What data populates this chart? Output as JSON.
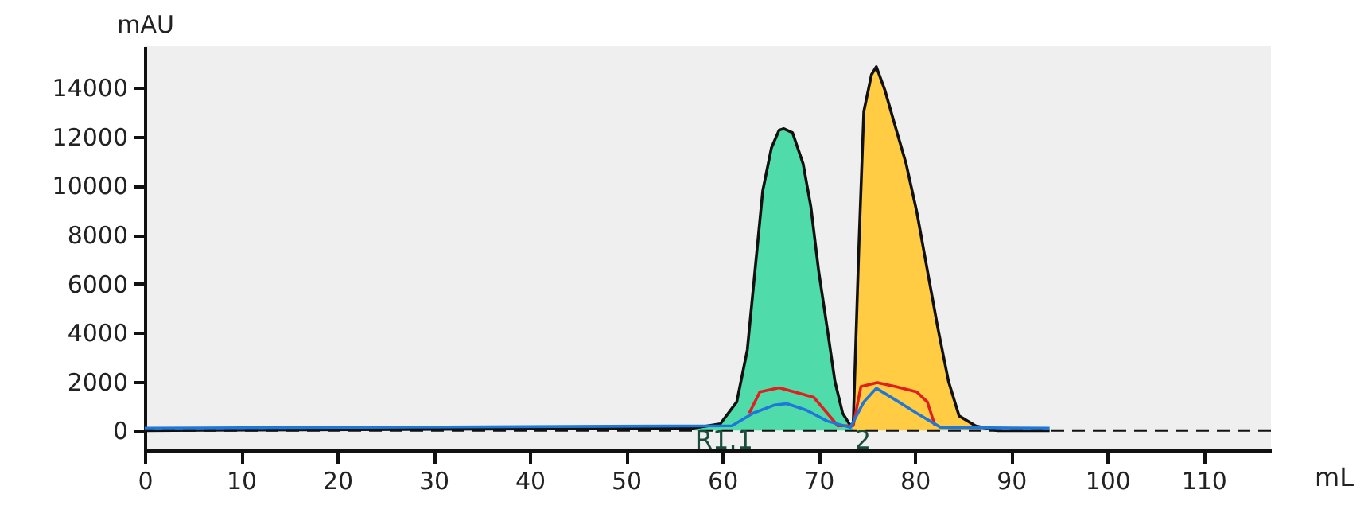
{
  "chart_data": {
    "type": "line",
    "xlabel": "mL",
    "ylabel": "mAU",
    "xlim": [
      0,
      117
    ],
    "ylim": [
      -800,
      15700
    ],
    "xticks": [
      0,
      10,
      20,
      30,
      40,
      50,
      60,
      70,
      80,
      90,
      100,
      110
    ],
    "yticks": [
      0,
      2000,
      4000,
      6000,
      8000,
      10000,
      12000,
      14000
    ],
    "grid": false,
    "marker": "none",
    "series": [
      {
        "type": "area",
        "color": "#4fdcaa",
        "x": [
          57,
          59.8,
          61.5,
          62.6,
          63.4,
          64.2,
          65.1,
          65.9,
          66.4,
          67.3,
          68.4,
          69.2,
          70.0,
          70.9,
          71.7,
          72.5,
          73.3,
          73.6
        ],
        "values": [
          100,
          280,
          1170,
          3300,
          6550,
          9790,
          11540,
          12270,
          12330,
          12160,
          10890,
          9140,
          6550,
          4170,
          2010,
          710,
          210,
          280
        ]
      },
      {
        "type": "area",
        "color": "#ffcc44",
        "x": [
          73.6,
          74.2,
          74.7,
          75.5,
          76.0,
          76.9,
          78.0,
          79.1,
          80.2,
          81.3,
          82.4,
          83.5,
          84.6,
          86.3,
          88.5
        ],
        "values": [
          280,
          7650,
          13030,
          14540,
          14860,
          13890,
          12380,
          10890,
          8940,
          6550,
          4170,
          2010,
          600,
          200,
          0
        ]
      },
      {
        "color": "#111111",
        "x": [
          0,
          57,
          59.8,
          61.5,
          62.6,
          63.4,
          64.2,
          65.1,
          65.9,
          66.4,
          67.3,
          68.4,
          69.2,
          70.0,
          70.9,
          71.7,
          72.5,
          73.3,
          73.6,
          74.2,
          74.7,
          75.5,
          76.0,
          76.9,
          78.0,
          79.1,
          80.2,
          81.3,
          82.4,
          83.5,
          84.6,
          86.3,
          88.5,
          94
        ],
        "values": [
          0,
          100,
          280,
          1170,
          3300,
          6550,
          9790,
          11540,
          12270,
          12330,
          12160,
          10890,
          9140,
          6550,
          4170,
          2010,
          710,
          210,
          280,
          7650,
          13030,
          14540,
          14860,
          13890,
          12380,
          10890,
          8940,
          6550,
          4170,
          2010,
          600,
          200,
          0,
          0
        ]
      },
      {
        "color": "#e02020",
        "x": [
          62.8,
          63.9,
          65.9,
          67.5,
          69.5,
          70.9,
          72.0,
          73.6,
          74.4,
          76.1,
          78.0,
          80.2,
          81.3,
          82.1
        ],
        "values": [
          710,
          1580,
          1750,
          1580,
          1360,
          710,
          200,
          200,
          1800,
          1960,
          1800,
          1580,
          1170,
          200
        ]
      },
      {
        "color": "#1f77d8",
        "x": [
          0,
          61.0,
          63.2,
          65.4,
          66.7,
          68.7,
          70.9,
          73.3,
          74.7,
          76.0,
          78.0,
          80.2,
          82.7,
          94
        ],
        "values": [
          100,
          200,
          710,
          1040,
          1100,
          840,
          390,
          130,
          1170,
          1730,
          1250,
          710,
          130,
          100
        ]
      }
    ],
    "ref_lines": [
      {
        "axis": "y",
        "value": 0,
        "color": "#111111",
        "line_style": "dashed"
      }
    ],
    "annotations": [
      "R1.1",
      "2"
    ]
  }
}
